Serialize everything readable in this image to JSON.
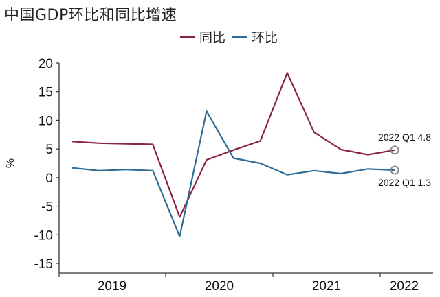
{
  "title": "中国GDP环比和同比增速",
  "legend": [
    {
      "label": "同比",
      "color": "#8b2346"
    },
    {
      "label": "环比",
      "color": "#2e6b96"
    }
  ],
  "chart_data": {
    "type": "line",
    "title": "中国GDP环比和同比增速",
    "ylabel": "%",
    "xlabel": "",
    "ylim": [
      -15,
      20
    ],
    "yticks": [
      20,
      15,
      10,
      5,
      0,
      -5,
      -10,
      -15
    ],
    "year_labels": [
      "2019",
      "2020",
      "2021",
      "2022"
    ],
    "categories": [
      "2019 Q1",
      "2019 Q2",
      "2019 Q3",
      "2019 Q4",
      "2020 Q1",
      "2020 Q2",
      "2020 Q3",
      "2020 Q4",
      "2021 Q1",
      "2021 Q2",
      "2021 Q3",
      "2021 Q4",
      "2022 Q1"
    ],
    "series": [
      {
        "name": "同比",
        "color": "#8b2346",
        "values": [
          6.3,
          6.0,
          5.9,
          5.8,
          -6.9,
          3.1,
          4.8,
          6.4,
          18.3,
          7.9,
          4.9,
          4.0,
          4.8
        ]
      },
      {
        "name": "环比",
        "color": "#2e6b96",
        "values": [
          1.7,
          1.2,
          1.4,
          1.2,
          -10.3,
          11.6,
          3.4,
          2.5,
          0.5,
          1.2,
          0.7,
          1.5,
          1.3
        ]
      }
    ],
    "annotations": [
      {
        "series": "同比",
        "text": "2022 Q1 4.8"
      },
      {
        "series": "环比",
        "text": "2022 Q1 1.3"
      }
    ],
    "grid": false,
    "legend_position": "top"
  }
}
